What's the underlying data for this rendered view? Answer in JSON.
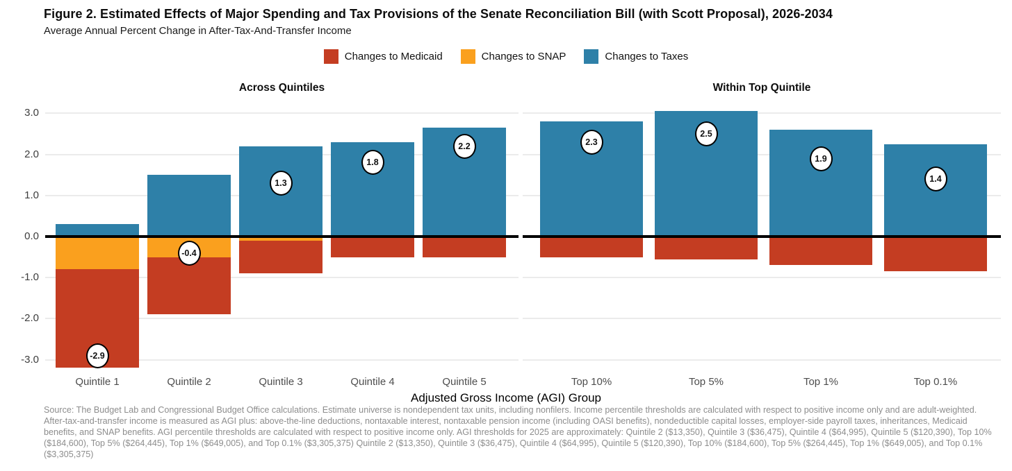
{
  "header": {
    "title": "Figure 2. Estimated Effects of Major Spending and Tax Provisions of the Senate Reconciliation Bill (with Scott Proposal), 2026-2034",
    "subtitle": "Average Annual Percent Change in After-Tax-And-Transfer Income"
  },
  "legend": [
    {
      "label": "Changes to Medicaid",
      "color": "#c43d22"
    },
    {
      "label": "Changes to SNAP",
      "color": "#faa01e"
    },
    {
      "label": "Changes to Taxes",
      "color": "#2e80a8"
    }
  ],
  "chart_data": {
    "type": "bar",
    "stacked": true,
    "grid": true,
    "xlabel": "Adjusted Gross Income (AGI) Group",
    "ylabel": "Average Annual Percent Change in After-Tax-And-Transfer Income",
    "ylim": [
      -3.4,
      3.4
    ],
    "yticks": [
      {
        "label": "3.0",
        "value": 3
      },
      {
        "label": "2.0",
        "value": 2
      },
      {
        "label": "1.0",
        "value": 1
      },
      {
        "label": "0.0",
        "value": 0
      },
      {
        "label": "-1.0",
        "value": -1
      },
      {
        "label": "-2.0",
        "value": -2
      },
      {
        "label": "-3.0",
        "value": -3
      }
    ],
    "panels": [
      {
        "title": "Across Quintiles",
        "categories": [
          "Quintile 1",
          "Quintile 2",
          "Quintile 3",
          "Quintile 4",
          "Quintile 5"
        ],
        "series": [
          {
            "name": "Changes to SNAP",
            "color": "#faa01e",
            "values": [
              -0.8,
              -0.5,
              -0.1,
              0,
              0
            ]
          },
          {
            "name": "Changes to Medicaid",
            "color": "#c43d22",
            "values": [
              -2.4,
              -1.4,
              -0.8,
              -0.5,
              -0.5
            ]
          },
          {
            "name": "Changes to Taxes",
            "color": "#2e80a8",
            "values": [
              0.3,
              1.5,
              2.2,
              2.3,
              2.65
            ]
          }
        ],
        "net_labels": [
          "-2.9",
          "-0.4",
          "1.3",
          "1.8",
          "2.2"
        ]
      },
      {
        "title": "Within Top Quintile",
        "categories": [
          "Top 10%",
          "Top 5%",
          "Top 1%",
          "Top 0.1%"
        ],
        "series": [
          {
            "name": "Changes to SNAP",
            "color": "#faa01e",
            "values": [
              0,
              0,
              0,
              0
            ]
          },
          {
            "name": "Changes to Medicaid",
            "color": "#c43d22",
            "values": [
              -0.5,
              -0.55,
              -0.7,
              -0.85
            ]
          },
          {
            "name": "Changes to Taxes",
            "color": "#2e80a8",
            "values": [
              2.8,
              3.05,
              2.6,
              2.25
            ]
          }
        ],
        "net_labels": [
          "2.3",
          "2.5",
          "1.9",
          "1.4"
        ]
      }
    ]
  },
  "footer": {
    "source_note": "Source: The Budget Lab and Congressional Budget Office calculations. Estimate universe is nondependent tax units, including nonfilers. Income percentile thresholds are calculated with respect to positive income only and are adult-weighted. After-tax-and-transfer income is measured as AGI plus: above-the-line deductions, nontaxable interest, nontaxable pension income (including OASI benefits), nondeductible capital losses, employer-side payroll taxes, inheritances, Medicaid benefits, and SNAP benefits. AGI percentile thresholds are calculated with respect to positive income only. AGI thresholds for 2025 are approximately: Quintile 2 ($13,350), Quintile 3 ($36,475), Quintile 4 ($64,995), Quintile 5 ($120,390), Top 10% ($184,600), Top 5% ($264,445), Top 1% ($649,005), and Top 0.1% ($3,305,375) Quintile 2 ($13,350), Quintile 3 ($36,475), Quintile 4 ($64,995), Quintile 5 ($120,390), Top 10% ($184,600), Top 5% ($264,445), Top 1% ($649,005), and Top 0.1% ($3,305,375)"
  }
}
